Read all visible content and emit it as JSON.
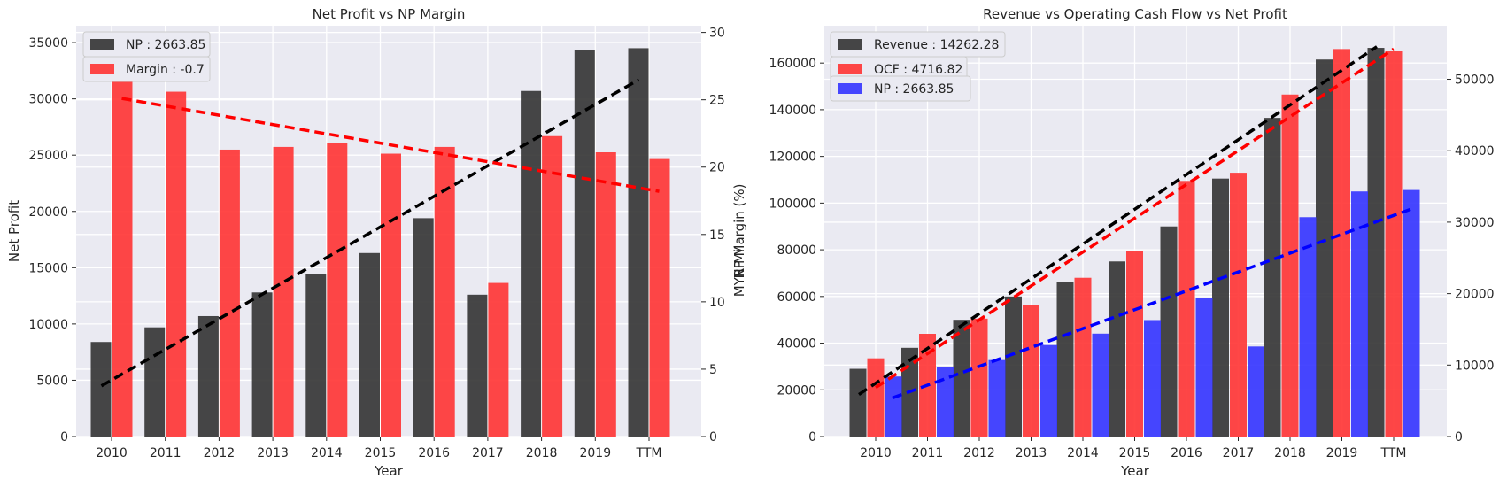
{
  "chart_data": [
    {
      "type": "bar",
      "title": "Net Profit vs NP Margin",
      "xlabel": "Year",
      "ylabel": "Net Profit",
      "ylabel_right": "NP Margin (%)",
      "categories": [
        "2010",
        "2011",
        "2012",
        "2013",
        "2014",
        "2015",
        "2016",
        "2017",
        "2018",
        "2019",
        "TTM"
      ],
      "ylim": [
        0,
        36500
      ],
      "yticks": [
        0,
        5000,
        10000,
        15000,
        20000,
        25000,
        30000,
        35000
      ],
      "ylim_right": [
        0,
        30.5
      ],
      "yticks_right": [
        0,
        5,
        10,
        15,
        20,
        25,
        30
      ],
      "grid": true,
      "legend_position": "upper-left",
      "series": [
        {
          "name": "NP : 2663.85",
          "axis": "left",
          "color": "#333333",
          "values": [
            8400,
            9700,
            10700,
            12800,
            14400,
            16300,
            19400,
            12600,
            30700,
            34300,
            34500
          ],
          "trend": [
            4500,
            31700
          ]
        },
        {
          "name": "Margin : -0.7",
          "axis": "right",
          "color": "#ff3333",
          "values": [
            28.9,
            25.6,
            21.3,
            21.5,
            21.8,
            21.0,
            21.5,
            11.4,
            22.3,
            21.1,
            20.6
          ],
          "trend": [
            25.1,
            18.2
          ]
        }
      ],
      "trend_colors": [
        "#000000",
        "#ff0000"
      ]
    },
    {
      "type": "bar",
      "title": "Revenue vs Operating Cash Flow vs Net Profit",
      "xlabel": "Year",
      "ylabel": "MYR Mil",
      "categories": [
        "2010",
        "2011",
        "2012",
        "2013",
        "2014",
        "2015",
        "2016",
        "2017",
        "2018",
        "2019",
        "TTM"
      ],
      "ylim": [
        0,
        176000
      ],
      "yticks": [
        0,
        20000,
        40000,
        60000,
        80000,
        100000,
        120000,
        140000,
        160000
      ],
      "ylim_right": [
        0,
        57500
      ],
      "yticks_right": [
        0,
        10000,
        20000,
        30000,
        40000,
        50000
      ],
      "grid": true,
      "legend_position": "upper-left",
      "series": [
        {
          "name": "Revenue : 14262.28",
          "axis": "left",
          "color": "#333333",
          "values": [
            29000,
            38000,
            50000,
            60000,
            66000,
            75000,
            90000,
            110500,
            136500,
            161500,
            166500
          ],
          "trend": [
            18000,
            167000
          ]
        },
        {
          "name": "OCF : 4716.82",
          "axis": "left",
          "color": "#ff3333",
          "values": [
            33500,
            44000,
            50500,
            56500,
            68000,
            79500,
            109500,
            113000,
            146500,
            166000,
            165000
          ],
          "trend": [
            21000,
            166000
          ]
        },
        {
          "name": "NP : 2663.85",
          "axis": "right",
          "color": "#3333ff",
          "values": [
            8400,
            9700,
            10700,
            12800,
            14400,
            16300,
            19400,
            12600,
            30700,
            34300,
            34500
          ],
          "trend": [
            5400,
            31800
          ]
        }
      ],
      "trend_colors": [
        "#000000",
        "#ff0000",
        "#0000ff"
      ]
    }
  ]
}
